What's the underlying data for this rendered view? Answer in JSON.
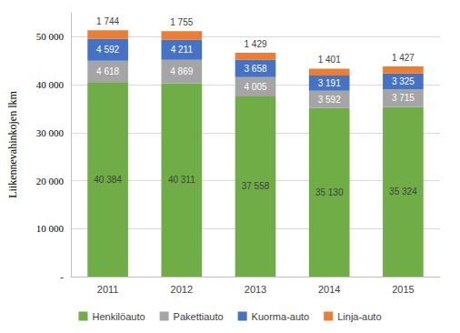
{
  "chart_data": {
    "type": "bar",
    "stacked": true,
    "data_labels": true,
    "grid": true,
    "legend": "bottom",
    "y_label": "Liikennevahinkojen lkm",
    "categories": [
      "2011",
      "2012",
      "2013",
      "2014",
      "2015"
    ],
    "ylim": [
      0,
      55000
    ],
    "yticks": [
      {
        "value": 0,
        "label": "-"
      },
      {
        "value": 10000,
        "label": "10 000"
      },
      {
        "value": 20000,
        "label": "20 000"
      },
      {
        "value": 30000,
        "label": "30 000"
      },
      {
        "value": 40000,
        "label": "40 000"
      },
      {
        "value": 50000,
        "label": "50 000"
      }
    ],
    "series": [
      {
        "name": "Henkilöauto",
        "color": "#70ad47",
        "values": [
          40384,
          40311,
          37558,
          35130,
          35324
        ],
        "value_labels": [
          "40 384",
          "40 311",
          "37 558",
          "35 130",
          "35 324"
        ]
      },
      {
        "name": "Pakettiauto",
        "color": "#a5a5a5",
        "values": [
          4618,
          4869,
          4005,
          3592,
          3715
        ],
        "value_labels": [
          "4 618",
          "4 869",
          "4 005",
          "3 592",
          "3 715"
        ]
      },
      {
        "name": "Kuorma-auto",
        "color": "#4472c4",
        "values": [
          4592,
          4211,
          3658,
          3191,
          3325
        ],
        "value_labels": [
          "4 592",
          "4 211",
          "3 658",
          "3 191",
          "3 325"
        ]
      },
      {
        "name": "Linja-auto",
        "color": "#ed7d31",
        "values": [
          1744,
          1755,
          1429,
          1401,
          1427
        ],
        "value_labels": [
          "1 744",
          "1 755",
          "1 429",
          "1 401",
          "1 427"
        ]
      }
    ]
  }
}
